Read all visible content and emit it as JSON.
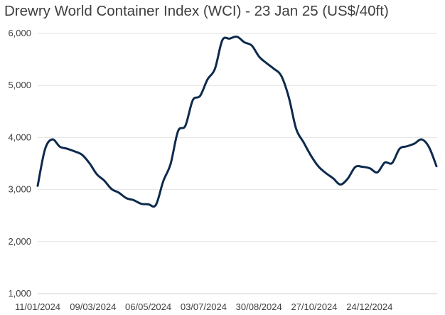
{
  "chart_data": {
    "type": "line",
    "title": "Drewry World Container Index (WCI) - 23 Jan 25 (US$/40ft)",
    "xlabel": "",
    "ylabel": "",
    "ylim": [
      1000,
      6000
    ],
    "yticks": [
      1000,
      2000,
      3000,
      4000,
      5000,
      6000
    ],
    "ytick_labels": [
      "1,000",
      "2,000",
      "3,000",
      "4,000",
      "5,000",
      "6,000"
    ],
    "xtick_labels": [
      "11/01/2024",
      "09/03/2024",
      "06/05/2024",
      "03/07/2024",
      "30/08/2024",
      "27/10/2024",
      "24/12/2024"
    ],
    "grid": "horizontal",
    "line_color": "#0d2a4d",
    "series": [
      {
        "x": [
          "2024-01-11",
          "2024-01-18",
          "2024-01-25",
          "2024-02-01",
          "2024-02-08",
          "2024-02-15",
          "2024-02-22",
          "2024-02-29",
          "2024-03-07",
          "2024-03-14",
          "2024-03-21",
          "2024-03-28",
          "2024-04-04",
          "2024-04-11",
          "2024-04-18",
          "2024-04-25",
          "2024-05-02",
          "2024-05-09",
          "2024-05-16",
          "2024-05-23",
          "2024-05-30",
          "2024-06-06",
          "2024-06-13",
          "2024-06-20",
          "2024-06-27",
          "2024-07-04",
          "2024-07-11",
          "2024-07-18",
          "2024-07-25",
          "2024-08-01",
          "2024-08-08",
          "2024-08-15",
          "2024-08-22",
          "2024-08-29",
          "2024-09-05",
          "2024-09-12",
          "2024-09-19",
          "2024-09-26",
          "2024-10-03",
          "2024-10-10",
          "2024-10-17",
          "2024-10-24",
          "2024-10-31",
          "2024-11-07",
          "2024-11-14",
          "2024-11-21",
          "2024-11-28",
          "2024-12-05",
          "2024-12-12",
          "2024-12-19",
          "2024-12-26",
          "2025-01-02",
          "2025-01-09",
          "2025-01-16",
          "2025-01-23"
        ],
        "values": [
          3072,
          3777,
          3964,
          3824,
          3785,
          3734,
          3670,
          3509,
          3296,
          3174,
          3011,
          2939,
          2836,
          2796,
          2728,
          2717,
          2703,
          3159,
          3493,
          4120,
          4226,
          4716,
          4801,
          5117,
          5319,
          5868,
          5900,
          5936,
          5829,
          5765,
          5551,
          5428,
          5319,
          5181,
          4775,
          4168,
          3909,
          3653,
          3447,
          3319,
          3217,
          3097,
          3213,
          3433,
          3436,
          3407,
          3330,
          3519,
          3510,
          3783,
          3831,
          3882,
          3964,
          3813,
          3449
        ]
      }
    ]
  }
}
